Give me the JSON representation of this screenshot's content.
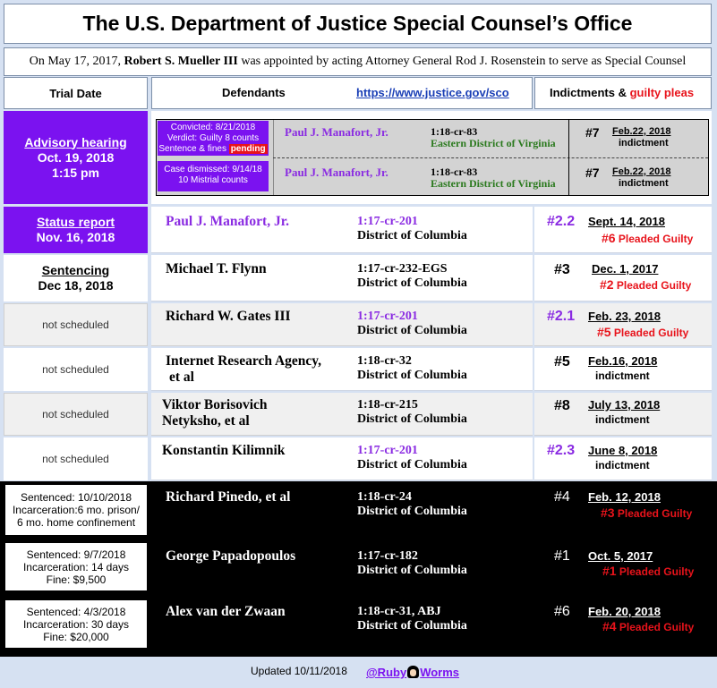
{
  "title": "The U.S. Department of Justice Special Counsel’s Office",
  "intro": {
    "pre": "On May 17, 2017, ",
    "bold": "Robert S. Mueller III",
    "post": " was appointed  by acting Attorney General Rod J. Rosenstein to serve as Special Counsel"
  },
  "header": {
    "trial": "Trial Date",
    "defendants": "Defendants",
    "link": "https://www.justice.gov/sco",
    "indict": "Indictments &",
    "guilty": "guilty pleas"
  },
  "manafort_va": {
    "trial": [
      "Advisory hearing",
      "Oct. 19, 2018",
      "1:15 pm"
    ],
    "box1": {
      "l1": "Convicted: 8/21/2018",
      "l2": "Verdict: Guilty 8 counts",
      "l3": "Sentence & fines",
      "badge": "pending"
    },
    "box2": {
      "l1": "Case dismissed: 9/14/18",
      "l2": "10 Mistrial counts"
    },
    "name": "Paul J. Manafort, Jr.",
    "case": "1:18-cr-83",
    "district": "Eastern District of Virginia",
    "num": "#7",
    "date": "Feb.22, 2018",
    "status": "indictment"
  },
  "rows": [
    {
      "trial": [
        "Status report",
        "Nov. 16, 2018"
      ],
      "name": "Paul J. Manafort, Jr.",
      "case": "1:17-cr-201",
      "district": "District of Columbia",
      "num": "#2.2",
      "date": "Sept. 14, 2018",
      "status_num": "#6",
      "status": "Pleaded Guilty"
    },
    {
      "trial": [
        "Sentencing",
        "Dec 18, 2018"
      ],
      "name": "Michael T. Flynn",
      "case": "1:17-cr-232-EGS",
      "district": "District of Columbia",
      "num": "#3",
      "date": "Dec. 1, 2017",
      "status_num": "#2",
      "status": "Pleaded Guilty"
    },
    {
      "trial": [
        "not scheduled"
      ],
      "name": "Richard W. Gates III",
      "case": "1:17-cr-201",
      "district": "District of Columbia",
      "num": "#2.1",
      "date": "Feb. 23, 2018",
      "status_num": "#5",
      "status": "Pleaded Guilty"
    },
    {
      "trial": [
        "not scheduled"
      ],
      "name": "Internet Research Agency,",
      "name2": "et al",
      "case": "1:18-cr-32",
      "district": "District of Columbia",
      "num": "#5",
      "date": "Feb.16, 2018",
      "status": "indictment"
    },
    {
      "trial": [
        "not scheduled"
      ],
      "name": "Viktor Borisovich",
      "name2": "Netyksho,  et al",
      "case": "1:18-cr-215",
      "district": "District of Columbia",
      "num": "#8",
      "date": "July 13, 2018",
      "status": "indictment"
    },
    {
      "trial": [
        "not scheduled"
      ],
      "name": "Konstantin Kilimnik",
      "case": "1:17-cr-201",
      "district": "District of Columbia",
      "num": "#2.3",
      "date": "June 8, 2018",
      "status": "indictment"
    },
    {
      "trial": [
        "Sentenced: 10/10/2018",
        "Incarceration:6 mo. prison/",
        "6 mo. home confinement"
      ],
      "name": "Richard Pinedo, et al",
      "case": "1:18-cr-24",
      "district": "District of Columbia",
      "num": "#4",
      "date": "Feb. 12, 2018",
      "status_num": "#3",
      "status": "Pleaded Guilty"
    },
    {
      "trial": [
        "Sentenced: 9/7/2018",
        "Incarceration: 14 days",
        "Fine: $9,500"
      ],
      "name": "George Papadopoulos",
      "case": "1:17-cr-182",
      "district": "District of Columbia",
      "num": "#1",
      "date": "Oct. 5, 2017",
      "status_num": "#1",
      "status": "Pleaded Guilty"
    },
    {
      "trial": [
        "Sentenced: 4/3/2018",
        "Incarceration: 30 days",
        "Fine: $20,000"
      ],
      "name": "Alex van der Zwaan",
      "case": "1:18-cr-31, ABJ",
      "district": "District of Columbia",
      "num": "#6",
      "date": "Feb. 20, 2018",
      "status_num": "#4",
      "status": "Pleaded Guilty"
    }
  ],
  "footer": {
    "updated": "Updated  10/11/2018",
    "handle_a": "@Ruby",
    "handle_b": "Worms"
  }
}
